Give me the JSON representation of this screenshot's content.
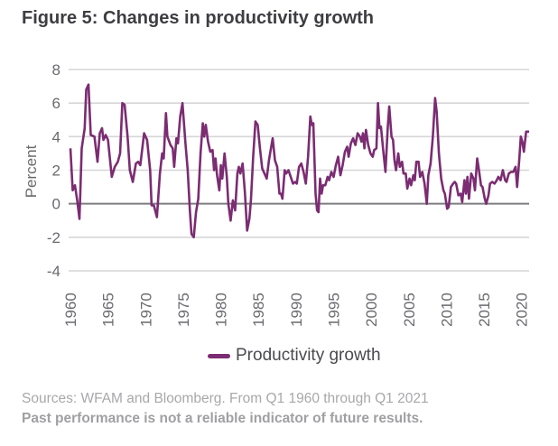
{
  "title": "Figure 5: Changes in productivity growth",
  "legend": {
    "label": "Productivity growth",
    "color": "#7b2c72"
  },
  "source": "Sources: WFAM and Bloomberg. From Q1 1960 through Q1 2021",
  "disclaimer": "Past performance is not a reliable indicator of future results.",
  "chart_data": {
    "type": "line",
    "title": "Figure 5: Changes in productivity growth",
    "xlabel": "",
    "ylabel": "Percent",
    "xlim": [
      1960,
      2021
    ],
    "ylim": [
      -4,
      8
    ],
    "yticks": [
      8,
      6,
      4,
      2,
      0,
      -2,
      -4
    ],
    "xticks": [
      1960,
      1965,
      1970,
      1975,
      1980,
      1985,
      1990,
      1995,
      2000,
      2005,
      2010,
      2015,
      2020
    ],
    "grid": "horizontal",
    "legend_position": "bottom-center",
    "series": [
      {
        "name": "Productivity growth",
        "color": "#7b2c72",
        "points": [
          [
            1960.0,
            3.3
          ],
          [
            1960.3,
            0.8
          ],
          [
            1960.6,
            1.1
          ],
          [
            1960.9,
            0.2
          ],
          [
            1961.2,
            -0.9
          ],
          [
            1961.5,
            3.3
          ],
          [
            1961.9,
            4.5
          ],
          [
            1962.1,
            6.8
          ],
          [
            1962.4,
            7.1
          ],
          [
            1962.7,
            4.1
          ],
          [
            1963.2,
            4.0
          ],
          [
            1963.6,
            2.5
          ],
          [
            1963.9,
            4.2
          ],
          [
            1964.2,
            4.5
          ],
          [
            1964.4,
            3.8
          ],
          [
            1964.7,
            4.1
          ],
          [
            1965.0,
            3.8
          ],
          [
            1965.5,
            1.6
          ],
          [
            1965.9,
            2.2
          ],
          [
            1966.3,
            2.5
          ],
          [
            1966.6,
            3.0
          ],
          [
            1966.9,
            6.0
          ],
          [
            1967.2,
            5.9
          ],
          [
            1967.6,
            4.0
          ],
          [
            1967.9,
            2.0
          ],
          [
            1968.3,
            1.3
          ],
          [
            1968.7,
            2.4
          ],
          [
            1969.0,
            2.5
          ],
          [
            1969.3,
            2.3
          ],
          [
            1969.8,
            4.2
          ],
          [
            1970.2,
            3.8
          ],
          [
            1970.6,
            2.0
          ],
          [
            1970.8,
            -0.1
          ],
          [
            1971.1,
            -0.1
          ],
          [
            1971.5,
            -0.8
          ],
          [
            1971.9,
            1.8
          ],
          [
            1972.2,
            3.0
          ],
          [
            1972.4,
            2.7
          ],
          [
            1972.7,
            5.4
          ],
          [
            1972.9,
            4.0
          ],
          [
            1973.3,
            3.5
          ],
          [
            1973.6,
            3.3
          ],
          [
            1973.8,
            2.2
          ],
          [
            1974.1,
            3.9
          ],
          [
            1974.3,
            3.6
          ],
          [
            1974.6,
            5.2
          ],
          [
            1974.9,
            6.0
          ],
          [
            1975.3,
            3.6
          ],
          [
            1975.6,
            2.0
          ],
          [
            1975.9,
            -0.5
          ],
          [
            1976.1,
            -1.8
          ],
          [
            1976.4,
            -2.0
          ],
          [
            1976.7,
            -0.5
          ],
          [
            1977.0,
            0.3
          ],
          [
            1977.3,
            3.0
          ],
          [
            1977.6,
            4.8
          ],
          [
            1977.8,
            4.0
          ],
          [
            1978.0,
            4.7
          ],
          [
            1978.3,
            3.7
          ],
          [
            1978.6,
            3.1
          ],
          [
            1978.9,
            3.2
          ],
          [
            1979.1,
            2.0
          ],
          [
            1979.3,
            2.7
          ],
          [
            1979.5,
            1.7
          ],
          [
            1979.8,
            0.8
          ],
          [
            1980.0,
            2.3
          ],
          [
            1980.2,
            1.5
          ],
          [
            1980.5,
            3.0
          ],
          [
            1980.8,
            1.6
          ],
          [
            1981.0,
            0.0
          ],
          [
            1981.3,
            -1.0
          ],
          [
            1981.6,
            0.2
          ],
          [
            1981.9,
            -0.4
          ],
          [
            1982.2,
            1.8
          ],
          [
            1982.4,
            2.2
          ],
          [
            1982.6,
            1.8
          ],
          [
            1982.9,
            2.4
          ],
          [
            1983.2,
            0.7
          ],
          [
            1983.5,
            -1.6
          ],
          [
            1983.8,
            -0.9
          ],
          [
            1984.0,
            0.2
          ],
          [
            1984.3,
            2.8
          ],
          [
            1984.6,
            4.9
          ],
          [
            1984.9,
            4.7
          ],
          [
            1985.2,
            3.3
          ],
          [
            1985.5,
            2.1
          ],
          [
            1985.8,
            1.8
          ],
          [
            1986.1,
            1.5
          ],
          [
            1986.4,
            2.6
          ],
          [
            1986.7,
            3.4
          ],
          [
            1986.9,
            3.9
          ],
          [
            1987.2,
            2.6
          ],
          [
            1987.5,
            2.2
          ],
          [
            1987.8,
            0.6
          ],
          [
            1988.0,
            0.6
          ],
          [
            1988.2,
            0.3
          ],
          [
            1988.5,
            2.0
          ],
          [
            1988.7,
            1.8
          ],
          [
            1989.0,
            2.0
          ],
          [
            1989.3,
            1.6
          ],
          [
            1989.6,
            1.2
          ],
          [
            1989.9,
            1.3
          ],
          [
            1990.1,
            1.2
          ],
          [
            1990.4,
            2.2
          ],
          [
            1990.7,
            2.4
          ],
          [
            1991.0,
            1.9
          ],
          [
            1991.3,
            1.2
          ],
          [
            1991.6,
            2.8
          ],
          [
            1991.9,
            5.2
          ],
          [
            1992.1,
            4.7
          ],
          [
            1992.3,
            4.8
          ],
          [
            1992.6,
            0.6
          ],
          [
            1992.8,
            -0.4
          ],
          [
            1993.0,
            -0.5
          ],
          [
            1993.2,
            1.5
          ],
          [
            1993.4,
            0.6
          ],
          [
            1993.6,
            1.1
          ],
          [
            1993.9,
            1.1
          ],
          [
            1994.2,
            1.6
          ],
          [
            1994.4,
            1.4
          ],
          [
            1994.7,
            1.9
          ],
          [
            1995.0,
            1.6
          ],
          [
            1995.3,
            2.3
          ],
          [
            1995.6,
            2.8
          ],
          [
            1995.9,
            1.7
          ],
          [
            1996.2,
            2.3
          ],
          [
            1996.5,
            3.1
          ],
          [
            1996.8,
            3.4
          ],
          [
            1997.0,
            2.8
          ],
          [
            1997.3,
            3.6
          ],
          [
            1997.6,
            3.9
          ],
          [
            1997.9,
            3.5
          ],
          [
            1998.2,
            4.2
          ],
          [
            1998.5,
            4.0
          ],
          [
            1998.7,
            3.7
          ],
          [
            1998.9,
            4.2
          ],
          [
            1999.1,
            3.3
          ],
          [
            1999.3,
            4.4
          ],
          [
            1999.6,
            3.5
          ],
          [
            1999.9,
            3.0
          ],
          [
            2000.2,
            2.8
          ],
          [
            2000.4,
            3.2
          ],
          [
            2000.7,
            3.3
          ],
          [
            2000.9,
            6.0
          ],
          [
            2001.1,
            4.5
          ],
          [
            2001.3,
            4.6
          ],
          [
            2001.6,
            3.2
          ],
          [
            2001.9,
            1.9
          ],
          [
            2002.2,
            4.5
          ],
          [
            2002.4,
            5.8
          ],
          [
            2002.7,
            4.0
          ],
          [
            2002.9,
            3.8
          ],
          [
            2003.1,
            2.6
          ],
          [
            2003.3,
            2.0
          ],
          [
            2003.6,
            3.0
          ],
          [
            2003.8,
            2.2
          ],
          [
            2004.1,
            2.5
          ],
          [
            2004.3,
            1.8
          ],
          [
            2004.6,
            1.8
          ],
          [
            2004.8,
            0.9
          ],
          [
            2005.1,
            1.5
          ],
          [
            2005.3,
            1.1
          ],
          [
            2005.6,
            1.7
          ],
          [
            2005.8,
            1.4
          ],
          [
            2006.0,
            2.5
          ],
          [
            2006.3,
            2.5
          ],
          [
            2006.5,
            1.6
          ],
          [
            2006.8,
            1.9
          ],
          [
            2007.1,
            1.2
          ],
          [
            2007.4,
            0.0
          ],
          [
            2007.6,
            1.7
          ],
          [
            2007.9,
            2.4
          ],
          [
            2008.2,
            4.0
          ],
          [
            2008.5,
            6.3
          ],
          [
            2008.7,
            5.5
          ],
          [
            2009.0,
            3.0
          ],
          [
            2009.3,
            1.5
          ],
          [
            2009.6,
            0.8
          ],
          [
            2009.8,
            0.6
          ],
          [
            2010.1,
            -0.3
          ],
          [
            2010.3,
            -0.2
          ],
          [
            2010.6,
            1.0
          ],
          [
            2010.9,
            1.2
          ],
          [
            2011.1,
            1.3
          ],
          [
            2011.3,
            1.2
          ],
          [
            2011.6,
            0.5
          ],
          [
            2011.9,
            0.6
          ],
          [
            2012.1,
            0.1
          ],
          [
            2012.4,
            1.4
          ],
          [
            2012.6,
            0.6
          ],
          [
            2012.8,
            1.6
          ],
          [
            2013.0,
            0.3
          ],
          [
            2013.3,
            1.8
          ],
          [
            2013.6,
            1.5
          ],
          [
            2013.8,
            0.8
          ],
          [
            2014.1,
            2.7
          ],
          [
            2014.3,
            2.1
          ],
          [
            2014.6,
            1.1
          ],
          [
            2014.8,
            1.0
          ],
          [
            2015.1,
            0.3
          ],
          [
            2015.3,
            0.0
          ],
          [
            2015.6,
            0.5
          ],
          [
            2015.8,
            1.2
          ],
          [
            2016.1,
            1.3
          ],
          [
            2016.4,
            1.2
          ],
          [
            2016.7,
            1.4
          ],
          [
            2016.9,
            1.6
          ],
          [
            2017.2,
            1.4
          ],
          [
            2017.5,
            2.0
          ],
          [
            2017.8,
            1.4
          ],
          [
            2018.0,
            1.3
          ],
          [
            2018.3,
            1.8
          ],
          [
            2018.6,
            1.9
          ],
          [
            2018.9,
            1.9
          ],
          [
            2019.2,
            2.2
          ],
          [
            2019.4,
            1.0
          ],
          [
            2019.7,
            2.7
          ],
          [
            2019.9,
            4.0
          ],
          [
            2020.1,
            3.7
          ],
          [
            2020.3,
            3.1
          ],
          [
            2020.6,
            4.3
          ],
          [
            2021.0,
            4.3
          ]
        ]
      }
    ]
  }
}
